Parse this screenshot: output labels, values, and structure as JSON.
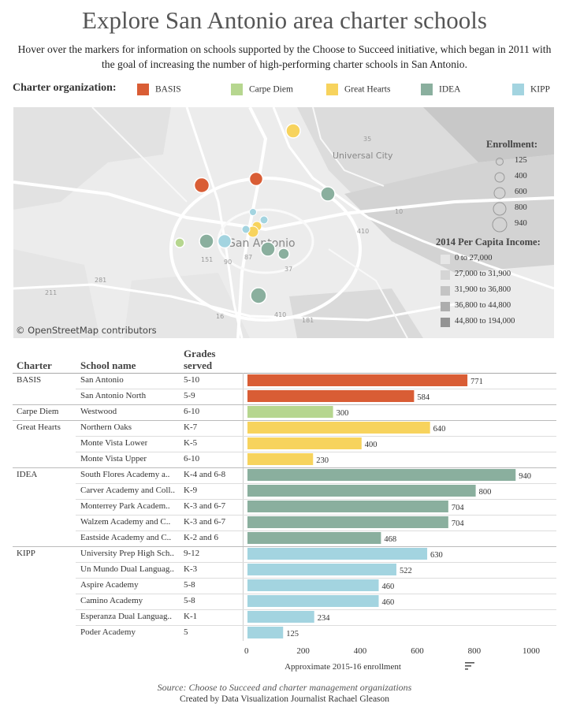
{
  "title": "Explore San Antonio area charter schools",
  "intro": "Hover over the markers for information on schools supported by the Choose to Succeed initiative, which began in 2011 with the goal of increasing the number of high-performing charter schools in San Antonio.",
  "legend": {
    "title": "Charter organization:",
    "items": [
      {
        "label": "BASIS",
        "color": "#d95d35"
      },
      {
        "label": "Carpe Diem",
        "color": "#b6d68f"
      },
      {
        "label": "Great Hearts",
        "color": "#f7d35d"
      },
      {
        "label": "IDEA",
        "color": "#8aaf9e"
      },
      {
        "label": "KIPP",
        "color": "#a3d4e0"
      }
    ]
  },
  "map": {
    "attribution": "© OpenStreetMap contributors",
    "city_label": "San Antonio",
    "place_label": "Universal City",
    "highway_labels": [
      "35",
      "10",
      "410",
      "281",
      "151",
      "90",
      "87",
      "37",
      "16",
      "181",
      "211",
      "90",
      "410"
    ],
    "enrollment_legend": {
      "title": "Enrollment:",
      "values": [
        "125",
        "400",
        "600",
        "800",
        "940"
      ]
    },
    "income_legend": {
      "title": "2014 Per Capita Income:",
      "items": [
        {
          "label": "0 to 27,000",
          "color": "#e6e6e6"
        },
        {
          "label": "27,000 to 31,900",
          "color": "#d5d5d5"
        },
        {
          "label": "31,900 to 36,800",
          "color": "#c4c4c4"
        },
        {
          "label": "36,800 to 44,800",
          "color": "#adadad"
        },
        {
          "label": "44,800 to 194,000",
          "color": "#939393"
        }
      ]
    }
  },
  "table": {
    "headers": {
      "charter": "Charter",
      "school": "School name",
      "grades_line1": "Grades",
      "grades_line2": "served"
    },
    "xlabel": "Approximate 2015-16 enrollment",
    "x_ticks": [
      "0",
      "200",
      "400",
      "600",
      "800",
      "1000"
    ]
  },
  "chart_data": {
    "type": "bar",
    "orientation": "horizontal",
    "xlabel": "Approximate 2015-16 enrollment",
    "xlim": [
      0,
      1000
    ],
    "rows": [
      {
        "charter": "BASIS",
        "school": "San Antonio",
        "grades": "5-10",
        "value": 771
      },
      {
        "charter": "",
        "school": "San Antonio North",
        "grades": "5-9",
        "value": 584
      },
      {
        "charter": "Carpe Diem",
        "school": "Westwood",
        "grades": "6-10",
        "value": 300
      },
      {
        "charter": "Great Hearts",
        "school": "Northern Oaks",
        "grades": "K-7",
        "value": 640
      },
      {
        "charter": "",
        "school": "Monte Vista Lower",
        "grades": "K-5",
        "value": 400
      },
      {
        "charter": "",
        "school": "Monte Vista Upper",
        "grades": "6-10",
        "value": 230
      },
      {
        "charter": "IDEA",
        "school": "South Flores Academy a..",
        "grades": "K-4 and 6-8",
        "value": 940
      },
      {
        "charter": "",
        "school": "Carver Academy and Coll..",
        "grades": "K-9",
        "value": 800
      },
      {
        "charter": "",
        "school": "Monterrey Park Academ..",
        "grades": "K-3 and 6-7",
        "value": 704
      },
      {
        "charter": "",
        "school": "Walzem Academy and C..",
        "grades": "K-3 and 6-7",
        "value": 704
      },
      {
        "charter": "",
        "school": "Eastside Academy and C..",
        "grades": "K-2 and 6",
        "value": 468
      },
      {
        "charter": "KIPP",
        "school": "University Prep High Sch..",
        "grades": "9-12",
        "value": 630
      },
      {
        "charter": "",
        "school": "Un Mundo Dual Languag..",
        "grades": "K-3",
        "value": 522
      },
      {
        "charter": "",
        "school": "Aspire Academy",
        "grades": "5-8",
        "value": 460
      },
      {
        "charter": "",
        "school": "Camino Academy",
        "grades": "5-8",
        "value": 460
      },
      {
        "charter": "",
        "school": "Esperanza Dual Languag..",
        "grades": "K-1",
        "value": 234
      },
      {
        "charter": "",
        "school": "Poder Academy",
        "grades": "5",
        "value": 125
      }
    ],
    "row_colors": [
      "#d95d35",
      "#d95d35",
      "#b6d68f",
      "#f7d35d",
      "#f7d35d",
      "#f7d35d",
      "#8aaf9e",
      "#8aaf9e",
      "#8aaf9e",
      "#8aaf9e",
      "#8aaf9e",
      "#a3d4e0",
      "#a3d4e0",
      "#a3d4e0",
      "#a3d4e0",
      "#a3d4e0",
      "#a3d4e0"
    ]
  },
  "source": "Source: Choose to Succeed and charter management organizations",
  "credit": "Created by Data Visualization Journalist Rachael Gleason"
}
